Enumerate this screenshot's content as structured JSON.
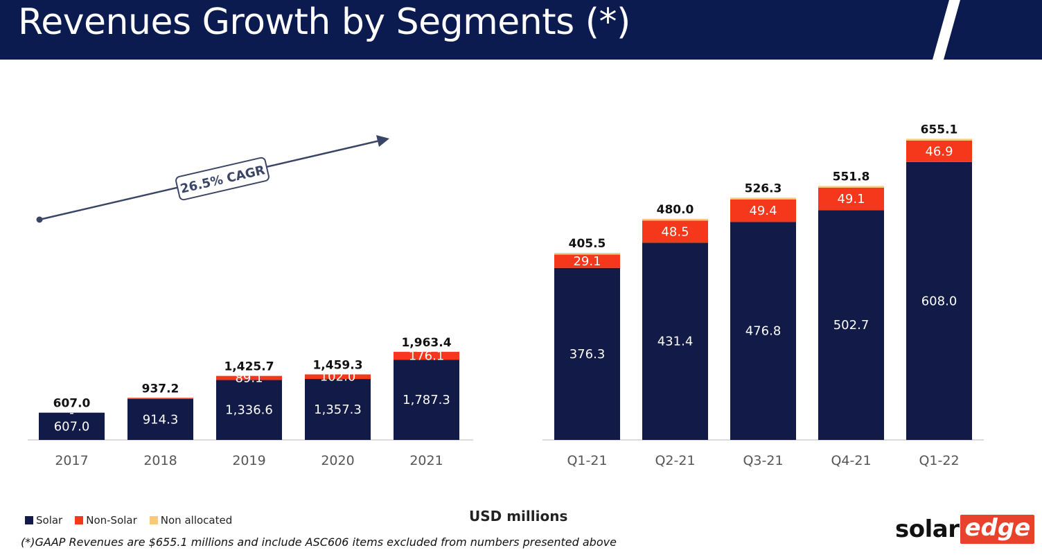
{
  "header": {
    "title": "Revenues Growth by Segments (*)"
  },
  "colors": {
    "header_bg": "#0b1b4f",
    "solar": "#121a47",
    "non_solar": "#f5381b",
    "non_allocated": "#f8c97a"
  },
  "legend": [
    {
      "label": "Solar",
      "color": "#121a47"
    },
    {
      "label": "Non-Solar",
      "color": "#f5381b"
    },
    {
      "label": "Non allocated",
      "color": "#f8c97a"
    }
  ],
  "units_label": "USD millions",
  "footnote": "(*)GAAP Revenues are $655.1 millions and include ASC606 items excluded from numbers presented above",
  "logo": {
    "part1": "solar",
    "part2": "edge"
  },
  "chart_data": [
    {
      "type": "bar",
      "stacked": true,
      "categories": [
        "2017",
        "2018",
        "2019",
        "2020",
        "2021"
      ],
      "series": [
        {
          "name": "Solar",
          "values": [
            607.0,
            914.3,
            1336.6,
            1357.3,
            1787.3
          ],
          "labels": [
            "607.0",
            "914.3",
            "1,336.6",
            "1,357.3",
            "1,787.3"
          ]
        },
        {
          "name": "Non-Solar",
          "values": [
            0,
            22.9,
            89.1,
            102.0,
            176.1
          ],
          "labels": [
            "-",
            "",
            "89.1",
            "102.0",
            "176.1"
          ]
        },
        {
          "name": "Non allocated",
          "values": [
            0,
            0,
            0,
            0,
            0
          ]
        }
      ],
      "totals": [
        "607.0",
        "937.2",
        "1,425.7",
        "1,459.3",
        "1,963.4"
      ],
      "total_values": [
        607.0,
        937.2,
        1425.7,
        1459.3,
        1963.4
      ],
      "annotation": "26.5% CAGR"
    },
    {
      "type": "bar",
      "stacked": true,
      "categories": [
        "Q1-21",
        "Q2-21",
        "Q3-21",
        "Q4-21",
        "Q1-22"
      ],
      "series": [
        {
          "name": "Solar",
          "values": [
            376.3,
            431.4,
            476.8,
            502.7,
            608.0
          ],
          "labels": [
            "376.3",
            "431.4",
            "476.8",
            "502.7",
            "608.0"
          ]
        },
        {
          "name": "Non-Solar",
          "values": [
            29.1,
            48.5,
            49.4,
            49.1,
            46.9
          ],
          "labels": [
            "29.1",
            "48.5",
            "49.4",
            "49.1",
            "46.9"
          ]
        },
        {
          "name": "Non allocated",
          "values": [
            0.1,
            0.1,
            0.1,
            0.1,
            0.2
          ]
        }
      ],
      "totals": [
        "405.5",
        "480.0",
        "526.3",
        "551.8",
        "655.1"
      ],
      "total_values": [
        405.5,
        480.0,
        526.3,
        551.8,
        655.1
      ]
    }
  ]
}
